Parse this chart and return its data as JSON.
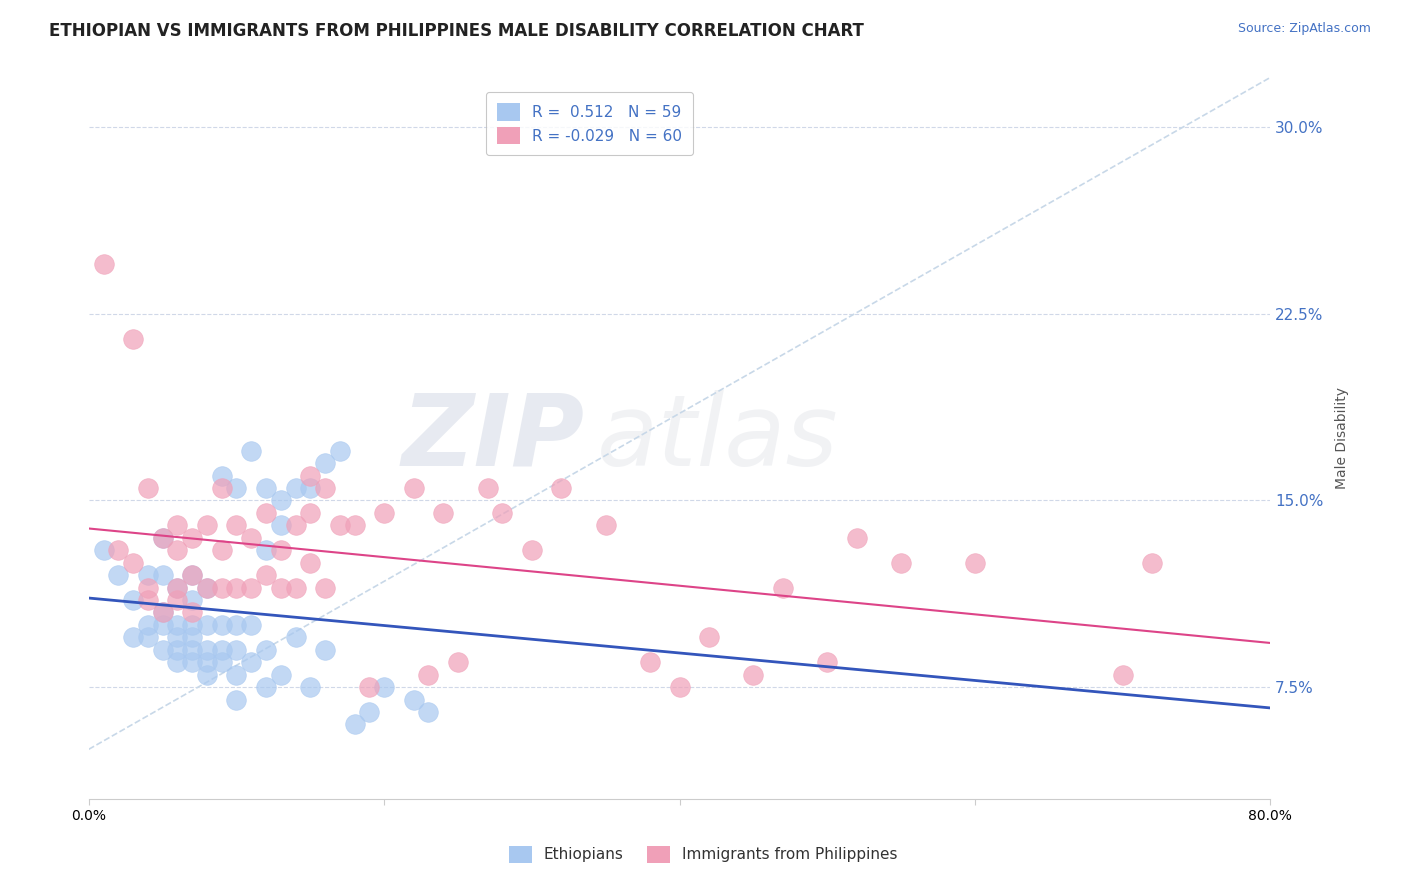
{
  "title": "ETHIOPIAN VS IMMIGRANTS FROM PHILIPPINES MALE DISABILITY CORRELATION CHART",
  "source": "Source: ZipAtlas.com",
  "ylabel": "Male Disability",
  "xlim": [
    0.0,
    0.8
  ],
  "ylim": [
    0.03,
    0.32
  ],
  "yticks": [
    0.075,
    0.15,
    0.225,
    0.3
  ],
  "ytick_labels": [
    "7.5%",
    "15.0%",
    "22.5%",
    "30.0%"
  ],
  "r_ethiopian": 0.512,
  "n_ethiopian": 59,
  "r_philippines": -0.029,
  "n_philippines": 60,
  "color_ethiopian": "#a8c8f0",
  "color_philippines": "#f0a0b8",
  "line_color_ethiopian": "#3355bb",
  "line_color_philippines": "#dd4488",
  "dash_line_color": "#c8d8e8",
  "background_color": "#ffffff",
  "grid_color": "#d0d8e8",
  "watermark_zip": "ZIP",
  "watermark_atlas": "atlas",
  "title_fontsize": 12,
  "ethiopian_x": [
    0.01,
    0.02,
    0.03,
    0.03,
    0.04,
    0.04,
    0.04,
    0.05,
    0.05,
    0.05,
    0.05,
    0.05,
    0.06,
    0.06,
    0.06,
    0.06,
    0.06,
    0.07,
    0.07,
    0.07,
    0.07,
    0.07,
    0.07,
    0.08,
    0.08,
    0.08,
    0.08,
    0.08,
    0.09,
    0.09,
    0.09,
    0.09,
    0.1,
    0.1,
    0.1,
    0.1,
    0.1,
    0.11,
    0.11,
    0.11,
    0.12,
    0.12,
    0.12,
    0.12,
    0.13,
    0.13,
    0.13,
    0.14,
    0.14,
    0.15,
    0.15,
    0.16,
    0.16,
    0.17,
    0.18,
    0.19,
    0.2,
    0.22,
    0.23
  ],
  "ethiopian_y": [
    0.13,
    0.12,
    0.095,
    0.11,
    0.095,
    0.1,
    0.12,
    0.09,
    0.1,
    0.105,
    0.12,
    0.135,
    0.085,
    0.09,
    0.095,
    0.1,
    0.115,
    0.085,
    0.09,
    0.095,
    0.1,
    0.11,
    0.12,
    0.08,
    0.085,
    0.09,
    0.1,
    0.115,
    0.085,
    0.09,
    0.1,
    0.16,
    0.07,
    0.08,
    0.09,
    0.1,
    0.155,
    0.085,
    0.1,
    0.17,
    0.075,
    0.09,
    0.13,
    0.155,
    0.08,
    0.14,
    0.15,
    0.095,
    0.155,
    0.075,
    0.155,
    0.09,
    0.165,
    0.17,
    0.06,
    0.065,
    0.075,
    0.07,
    0.065
  ],
  "philippines_x": [
    0.01,
    0.02,
    0.03,
    0.03,
    0.04,
    0.04,
    0.04,
    0.05,
    0.05,
    0.06,
    0.06,
    0.06,
    0.06,
    0.07,
    0.07,
    0.07,
    0.08,
    0.08,
    0.09,
    0.09,
    0.09,
    0.1,
    0.1,
    0.11,
    0.11,
    0.12,
    0.12,
    0.13,
    0.13,
    0.14,
    0.14,
    0.15,
    0.15,
    0.15,
    0.16,
    0.16,
    0.17,
    0.18,
    0.19,
    0.2,
    0.22,
    0.23,
    0.24,
    0.25,
    0.27,
    0.28,
    0.3,
    0.32,
    0.35,
    0.38,
    0.4,
    0.42,
    0.45,
    0.47,
    0.5,
    0.52,
    0.55,
    0.6,
    0.7,
    0.72
  ],
  "philippines_y": [
    0.245,
    0.13,
    0.125,
    0.215,
    0.11,
    0.115,
    0.155,
    0.105,
    0.135,
    0.11,
    0.115,
    0.13,
    0.14,
    0.105,
    0.12,
    0.135,
    0.115,
    0.14,
    0.115,
    0.13,
    0.155,
    0.115,
    0.14,
    0.115,
    0.135,
    0.12,
    0.145,
    0.115,
    0.13,
    0.115,
    0.14,
    0.125,
    0.145,
    0.16,
    0.115,
    0.155,
    0.14,
    0.14,
    0.075,
    0.145,
    0.155,
    0.08,
    0.145,
    0.085,
    0.155,
    0.145,
    0.13,
    0.155,
    0.14,
    0.085,
    0.075,
    0.095,
    0.08,
    0.115,
    0.085,
    0.135,
    0.125,
    0.125,
    0.08,
    0.125
  ]
}
